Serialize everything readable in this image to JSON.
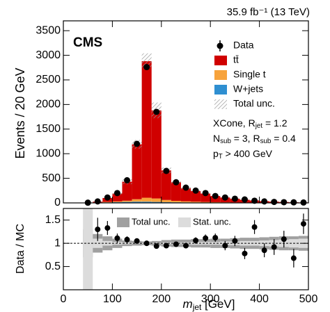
{
  "chart_data": [
    {
      "type": "stacked_histogram",
      "title": "35.9 fb⁻¹ (13 TeV)",
      "label": "CMS",
      "ylabel": "Events / 20 GeV",
      "bins": [
        0,
        20,
        40,
        60,
        80,
        100,
        120,
        140,
        160,
        180,
        200,
        220,
        240,
        260,
        280,
        300,
        320,
        340,
        360,
        380,
        400,
        420,
        440,
        460,
        480,
        500
      ],
      "series": [
        {
          "name": "W+jets",
          "color": "#2f8fd1",
          "values": [
            0,
            0,
            2,
            5,
            10,
            15,
            20,
            25,
            25,
            20,
            15,
            12,
            10,
            8,
            6,
            5,
            4,
            3,
            3,
            2,
            2,
            1,
            1,
            1,
            1
          ]
        },
        {
          "name": "Single t",
          "color": "#f7a33c",
          "values": [
            0,
            0,
            1,
            4,
            10,
            15,
            25,
            50,
            80,
            70,
            45,
            30,
            22,
            17,
            13,
            10,
            8,
            6,
            5,
            4,
            3,
            2,
            2,
            1,
            1
          ]
        },
        {
          "name": "tt̄",
          "color": "#d00000",
          "values": [
            0,
            0,
            2,
            16,
            80,
            160,
            385,
            1115,
            2775,
            1790,
            600,
            378,
            268,
            215,
            171,
            125,
            98,
            76,
            57,
            44,
            30,
            22,
            15,
            11,
            7
          ]
        }
      ],
      "uncertainty": {
        "name": "Total unc.",
        "color": "#888888",
        "values": [
          0,
          0,
          2,
          5,
          15,
          25,
          50,
          90,
          160,
          160,
          60,
          35,
          25,
          20,
          15,
          12,
          10,
          8,
          7,
          6,
          5,
          4,
          3,
          3,
          2
        ]
      },
      "data": {
        "name": "Data",
        "color": "#000000",
        "x": [
          10,
          30,
          50,
          70,
          90,
          110,
          130,
          150,
          170,
          190,
          210,
          230,
          250,
          270,
          290,
          310,
          330,
          350,
          370,
          390,
          410,
          430,
          450,
          470,
          490
        ],
        "values": [
          null,
          null,
          5,
          30,
          110,
          200,
          460,
          1200,
          2760,
          1850,
          650,
          420,
          310,
          250,
          200,
          140,
          110,
          85,
          70,
          45,
          30,
          20,
          15,
          12,
          8
        ]
      },
      "annotations": [
        [
          {
            "text": "XCone, R"
          },
          {
            "sub": "jet"
          },
          {
            "text": " = 1.2"
          }
        ],
        [
          {
            "text": "N"
          },
          {
            "sub": "sub"
          },
          {
            "text": " = 3, R"
          },
          {
            "sub": "sub"
          },
          {
            "text": " = 0.4"
          }
        ],
        [
          {
            "text": "p"
          },
          {
            "sub": "T"
          },
          {
            "text": " >  400 GeV"
          }
        ]
      ],
      "xlim": [
        0,
        500
      ],
      "ylim": [
        0,
        3700
      ],
      "yticks": [
        0,
        500,
        1000,
        1500,
        2000,
        2500,
        3000,
        3500
      ],
      "legend": "upper right"
    },
    {
      "type": "ratio",
      "ylabel": "Data / MC",
      "xlabel": [
        {
          "italic": "m"
        },
        {
          "sub": "jet"
        },
        {
          "text": " [GeV]"
        }
      ],
      "bins": [
        0,
        20,
        40,
        60,
        80,
        100,
        120,
        140,
        160,
        180,
        200,
        220,
        240,
        260,
        280,
        300,
        320,
        340,
        360,
        380,
        400,
        420,
        440,
        460,
        480,
        500
      ],
      "bands": [
        {
          "name": "Total unc.",
          "color": "#a0a0a0",
          "values": [
            null,
            null,
            0.3,
            0.2,
            0.15,
            0.1,
            0.06,
            0.05,
            0.04,
            0.05,
            0.07,
            0.08,
            0.08,
            0.09,
            0.09,
            0.1,
            0.1,
            0.11,
            0.12,
            0.12,
            0.13,
            0.14,
            0.15,
            0.15,
            0.16
          ]
        },
        {
          "name": "Stat. unc.",
          "color": "#dcdcdc",
          "values": [
            null,
            null,
            1.0,
            0.1,
            0.05,
            0.03,
            0.02,
            0.01,
            0.01,
            0.01,
            0.02,
            0.02,
            0.02,
            0.03,
            0.03,
            0.03,
            0.04,
            0.04,
            0.05,
            0.05,
            0.06,
            0.07,
            0.08,
            0.09,
            0.1
          ]
        }
      ],
      "data": {
        "color": "#000000",
        "x": [
          10,
          30,
          50,
          70,
          90,
          110,
          130,
          150,
          170,
          190,
          210,
          230,
          250,
          270,
          290,
          310,
          330,
          350,
          370,
          390,
          410,
          430,
          450,
          470,
          490
        ],
        "values": [
          null,
          null,
          null,
          1.3,
          1.33,
          1.11,
          1.08,
          1.05,
          1.0,
          0.94,
          0.95,
          0.98,
          0.95,
          1.06,
          1.11,
          1.12,
          0.95,
          1.05,
          0.78,
          1.35,
          0.85,
          0.92,
          1.09,
          0.68,
          1.42
        ],
        "errors": [
          null,
          null,
          null,
          0.25,
          0.15,
          0.1,
          0.07,
          0.04,
          0.02,
          0.02,
          0.04,
          0.05,
          0.06,
          0.07,
          0.08,
          0.09,
          0.1,
          0.11,
          0.12,
          0.15,
          0.15,
          0.17,
          0.18,
          0.2,
          0.22
        ]
      },
      "reference": 1,
      "xlim": [
        0,
        500
      ],
      "ylim": [
        0,
        1.75
      ],
      "xticks": [
        0,
        100,
        200,
        300,
        400,
        500
      ],
      "yticks": [
        0.5,
        1,
        1.5
      ]
    }
  ]
}
